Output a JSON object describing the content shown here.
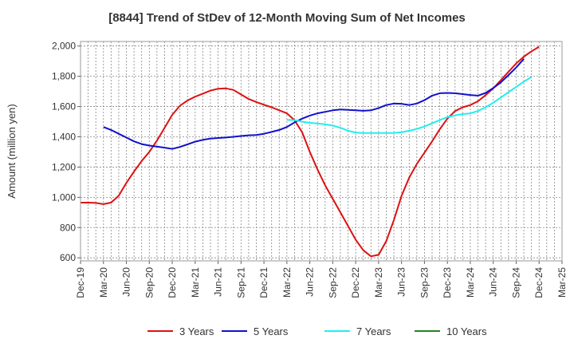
{
  "chart_data": {
    "type": "line",
    "title": "[8844]  Trend of StDev of 12-Month Moving Sum of Net Incomes",
    "ylabel": "Amount (million yen)",
    "xlabel": "",
    "ylim": [
      580,
      2030
    ],
    "y_ticks": [
      600,
      800,
      1000,
      1200,
      1400,
      1600,
      1800,
      2000
    ],
    "y_tick_labels": [
      "600",
      "800",
      "1,000",
      "1,200",
      "1,400",
      "1,600",
      "1,800",
      "2,000"
    ],
    "x_tick_labels": [
      "Dec-19",
      "Mar-20",
      "Jun-20",
      "Sep-20",
      "Dec-20",
      "Mar-21",
      "Jun-21",
      "Sep-21",
      "Dec-21",
      "Mar-22",
      "Jun-22",
      "Sep-22",
      "Dec-22",
      "Mar-23",
      "Jun-23",
      "Sep-23",
      "Dec-23",
      "Mar-24",
      "Jun-24",
      "Sep-24",
      "Dec-24",
      "Mar-25"
    ],
    "grid": true,
    "legend_position": "bottom",
    "series": [
      {
        "name": "3 Years",
        "color": "#dd1111",
        "start_index": 0,
        "values": [
          965,
          965,
          963,
          955,
          965,
          1010,
          1095,
          1170,
          1240,
          1300,
          1375,
          1460,
          1545,
          1605,
          1640,
          1665,
          1685,
          1705,
          1718,
          1720,
          1710,
          1680,
          1650,
          1630,
          1612,
          1595,
          1575,
          1555,
          1510,
          1430,
          1300,
          1185,
          1080,
          990,
          900,
          810,
          720,
          650,
          610,
          620,
          710,
          850,
          1010,
          1130,
          1220,
          1295,
          1370,
          1450,
          1520,
          1570,
          1595,
          1610,
          1635,
          1675,
          1720,
          1775,
          1830,
          1885,
          1930,
          1965,
          1995
        ]
      },
      {
        "name": "5 Years",
        "color": "#1111cc",
        "start_index": 3,
        "values": [
          1465,
          1445,
          1420,
          1395,
          1370,
          1352,
          1342,
          1335,
          1328,
          1320,
          1333,
          1350,
          1368,
          1380,
          1388,
          1392,
          1395,
          1400,
          1405,
          1410,
          1412,
          1420,
          1432,
          1445,
          1465,
          1495,
          1520,
          1540,
          1555,
          1565,
          1575,
          1580,
          1578,
          1575,
          1572,
          1575,
          1590,
          1610,
          1620,
          1618,
          1610,
          1620,
          1642,
          1672,
          1688,
          1690,
          1688,
          1682,
          1676,
          1672,
          1690,
          1722,
          1760,
          1808,
          1858,
          1915
        ]
      },
      {
        "name": "7 Years",
        "color": "#22eeee",
        "start_index": 27,
        "values": [
          1512,
          1510,
          1500,
          1492,
          1488,
          1482,
          1474,
          1460,
          1440,
          1428,
          1425,
          1425,
          1425,
          1425,
          1426,
          1430,
          1440,
          1452,
          1468,
          1490,
          1510,
          1530,
          1542,
          1550,
          1555,
          1570,
          1595,
          1625,
          1660,
          1695,
          1730,
          1765,
          1795
        ]
      },
      {
        "name": "10 Years",
        "color": "#228822",
        "start_index": 0,
        "values": []
      }
    ]
  }
}
